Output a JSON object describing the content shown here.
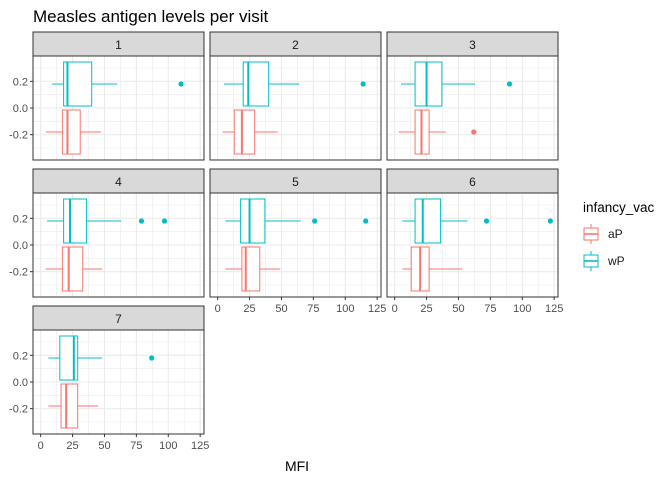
{
  "chart_data": {
    "type": "boxplot",
    "title": "Measles antigen levels per visit",
    "xlabel": "MFI",
    "ylabel": "",
    "xlim": [
      -6,
      128
    ],
    "ylim": [
      -0.39,
      0.39
    ],
    "x_ticks": [
      0,
      25,
      50,
      75,
      100,
      125
    ],
    "y_ticks": [
      0.2,
      0.0,
      -0.2
    ],
    "y_tick_labels": [
      "0.2",
      "0.0",
      "-0.2"
    ],
    "grid": true,
    "facets": [
      "1",
      "2",
      "3",
      "4",
      "5",
      "6",
      "7"
    ],
    "legend": {
      "title": "infancy_vac",
      "position": "right",
      "entries": [
        {
          "label": "aP",
          "color": "#F8766D"
        },
        {
          "label": "wP",
          "color": "#00BFC4"
        }
      ]
    },
    "series": [
      {
        "label": "aP",
        "color": "#F8766D",
        "y_center": -0.18,
        "boxes": [
          {
            "facet": "1",
            "whisker_low": 4,
            "q1": 17,
            "median": 21,
            "q3": 31,
            "whisker_high": 47,
            "outliers": []
          },
          {
            "facet": "2",
            "whisker_low": 4,
            "q1": 13,
            "median": 19,
            "q3": 29,
            "whisker_high": 47,
            "outliers": []
          },
          {
            "facet": "3",
            "whisker_low": 3,
            "q1": 16,
            "median": 21,
            "q3": 27,
            "whisker_high": 40,
            "outliers": [
              62
            ]
          },
          {
            "facet": "4",
            "whisker_low": 4,
            "q1": 17,
            "median": 22,
            "q3": 33,
            "whisker_high": 48,
            "outliers": []
          },
          {
            "facet": "5",
            "whisker_low": 6,
            "q1": 19,
            "median": 22,
            "q3": 33,
            "whisker_high": 49,
            "outliers": []
          },
          {
            "facet": "6",
            "whisker_low": 6,
            "q1": 13,
            "median": 20,
            "q3": 27,
            "whisker_high": 53,
            "outliers": []
          },
          {
            "facet": "7",
            "whisker_low": 6,
            "q1": 16,
            "median": 20,
            "q3": 29,
            "whisker_high": 45,
            "outliers": []
          }
        ]
      },
      {
        "label": "wP",
        "color": "#00BFC4",
        "y_center": 0.18,
        "boxes": [
          {
            "facet": "1",
            "whisker_low": 9,
            "q1": 18,
            "median": 21,
            "q3": 40,
            "whisker_high": 60,
            "outliers": [
              110
            ]
          },
          {
            "facet": "2",
            "whisker_low": 5,
            "q1": 20,
            "median": 24,
            "q3": 40,
            "whisker_high": 64,
            "outliers": [
              114
            ]
          },
          {
            "facet": "3",
            "whisker_low": 5,
            "q1": 16,
            "median": 25,
            "q3": 37,
            "whisker_high": 63,
            "outliers": [
              90
            ]
          },
          {
            "facet": "4",
            "whisker_low": 5,
            "q1": 18,
            "median": 23,
            "q3": 36,
            "whisker_high": 63,
            "outliers": [
              79,
              97
            ]
          },
          {
            "facet": "5",
            "whisker_low": 6,
            "q1": 18,
            "median": 25,
            "q3": 37,
            "whisker_high": 65,
            "outliers": [
              76,
              116
            ]
          },
          {
            "facet": "6",
            "whisker_low": 6,
            "q1": 16,
            "median": 22,
            "q3": 36,
            "whisker_high": 57,
            "outliers": [
              72,
              122
            ]
          },
          {
            "facet": "7",
            "whisker_low": 6,
            "q1": 15,
            "median": 26,
            "q3": 29,
            "whisker_high": 48,
            "outliers": [
              87
            ]
          }
        ]
      }
    ]
  }
}
